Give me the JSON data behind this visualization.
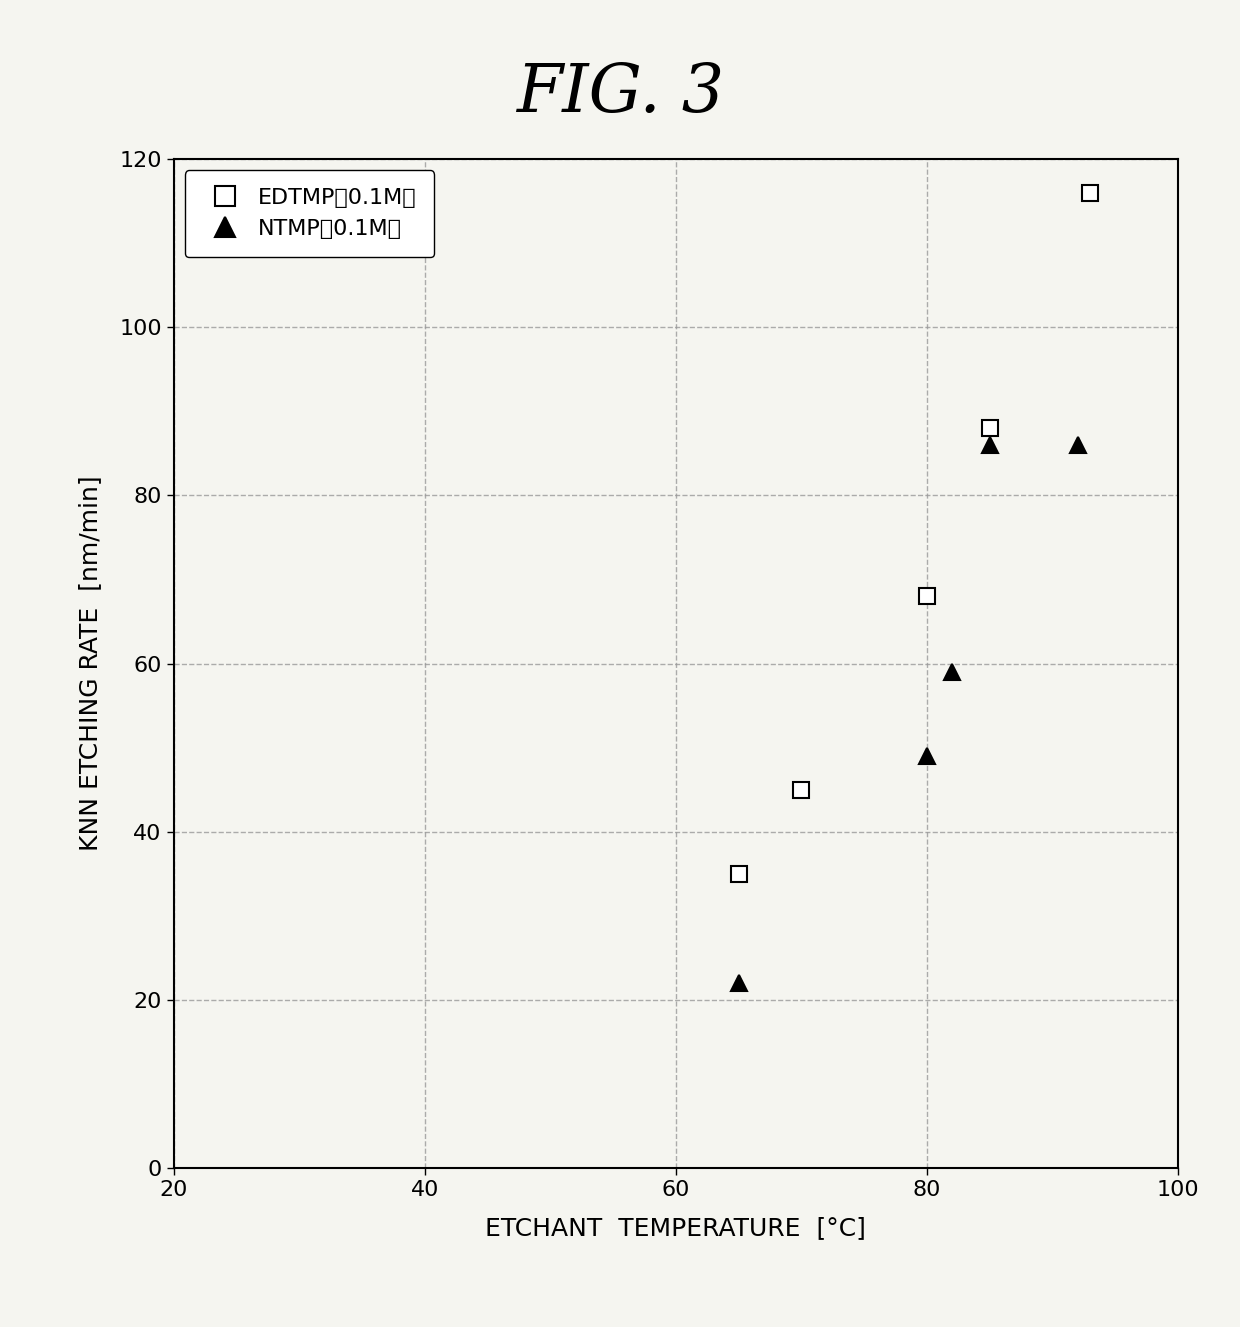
{
  "title": "FIG. 3",
  "xlabel": "ETCHANT  TEMPERATURE  [°C]",
  "ylabel": "KNN ETCHING RATE  [nm/min]",
  "xlim": [
    20,
    100
  ],
  "ylim": [
    0,
    120
  ],
  "xticks": [
    20,
    40,
    60,
    80,
    100
  ],
  "yticks": [
    0,
    20,
    40,
    60,
    80,
    100,
    120
  ],
  "edtmp_x": [
    65,
    70,
    80,
    85,
    93
  ],
  "edtmp_y": [
    35,
    45,
    68,
    88,
    116
  ],
  "ntmp_x": [
    65,
    80,
    82,
    85,
    92
  ],
  "ntmp_y": [
    22,
    49,
    59,
    86,
    86
  ],
  "edtmp_label": "EDTMP（0.1M）",
  "ntmp_label": "NTMP（0.1M）",
  "marker_size": 12,
  "bg_color": "#f5f5f0",
  "plot_bg": "#f5f5f0",
  "grid_color": "#999999",
  "grid_style": "--"
}
